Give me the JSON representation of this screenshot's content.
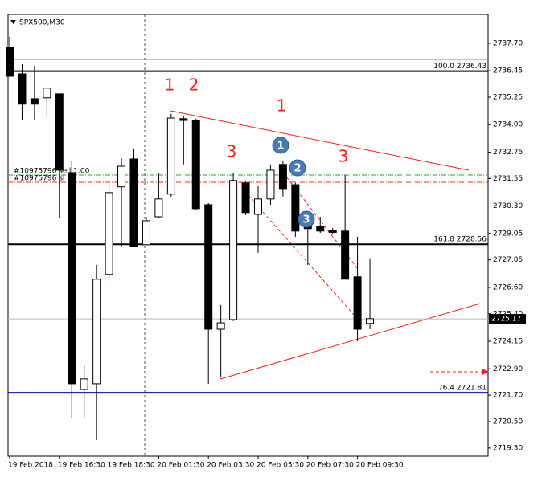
{
  "chart_data": {
    "type": "candlestick",
    "title": "SPX500,M30",
    "categories": [
      "19 Feb 2018",
      null,
      null,
      null,
      "19 Feb 16:30",
      null,
      null,
      null,
      "19 Feb 18:30",
      null,
      null,
      null,
      "20 Feb 01:30",
      null,
      null,
      null,
      "20 Feb 03:30",
      null,
      null,
      null,
      "20 Feb 05:30",
      null,
      null,
      null,
      "20 Feb 07:30",
      null,
      null,
      null,
      "20 Feb 09:30",
      null
    ],
    "open": [
      2737.5,
      2736.31,
      2735.18,
      2735.22,
      2735.4,
      2731.82,
      2721.96,
      2722.22,
      2727.19,
      2731.17,
      2732.44,
      2728.54,
      2729.81,
      2730.84,
      2734.27,
      2734.19,
      2730.36,
      2724.7,
      2725.14,
      2731.35,
      2729.92,
      2730.62,
      2732.19,
      2731.27,
      2729.45,
      2729.38,
      2729.2,
      2729.16,
      2727.08,
      2724.96
    ],
    "high": [
      2738.0,
      2736.75,
      2736.68,
      2735.66,
      2735.4,
      2732.37,
      2723.06,
      2727.62,
      2731.35,
      2732.48,
      2732.92,
      2729.81,
      2731.82,
      2734.49,
      2734.38,
      2734.27,
      2730.43,
      2725.8,
      2731.82,
      2731.46,
      2731.2,
      2732.19,
      2732.37,
      2731.35,
      2730.0,
      2729.81,
      2729.3,
      2731.71,
      2728.9,
      2727.92
    ],
    "low": [
      2736.2,
      2734.2,
      2734.2,
      2734.38,
      2729.74,
      2720.69,
      2720.69,
      2719.66,
      2726.9,
      2728.43,
      2728.46,
      2728.54,
      2729.74,
      2730.73,
      2732.19,
      2730.11,
      2722.22,
      2722.51,
      2725.07,
      2729.89,
      2728.17,
      2730.36,
      2730.73,
      2728.9,
      2727.62,
      2729.08,
      2729.0,
      2726.97,
      2724.15,
      2724.7
    ],
    "close": [
      2736.2,
      2734.93,
      2734.93,
      2735.66,
      2731.93,
      2722.22,
      2722.44,
      2726.97,
      2730.91,
      2732.11,
      2728.46,
      2729.63,
      2730.62,
      2734.3,
      2734.19,
      2730.18,
      2724.7,
      2724.99,
      2731.46,
      2730.0,
      2730.62,
      2731.93,
      2731.09,
      2729.16,
      2729.27,
      2729.16,
      2729.1,
      2726.97,
      2724.7,
      2725.18
    ],
    "up_color": "#ffffff",
    "down_color": "#000000",
    "ylim": [
      2719.15,
      2739.01
    ],
    "yticks": [
      {
        "value": 2719.3,
        "label": "2719.30"
      },
      {
        "value": 2720.5,
        "label": "2720.50"
      },
      {
        "value": 2721.7,
        "label": "2721.70"
      },
      {
        "value": 2722.9,
        "label": "2722.90"
      },
      {
        "value": 2724.15,
        "label": "2724.15"
      },
      {
        "value": 2725.4,
        "label": "2725.40"
      },
      {
        "value": 2726.6,
        "label": "2726.60"
      },
      {
        "value": 2727.85,
        "label": "2727.85"
      },
      {
        "value": 2729.05,
        "label": "2729.05"
      },
      {
        "value": 2730.3,
        "label": "2730.30"
      },
      {
        "value": 2731.55,
        "label": "2731.55"
      },
      {
        "value": 2732.75,
        "label": "2732.75"
      },
      {
        "value": 2734.0,
        "label": "2734.00"
      },
      {
        "value": 2735.25,
        "label": "2735.25"
      },
      {
        "value": 2736.45,
        "label": "2736.45"
      },
      {
        "value": 2737.7,
        "label": "2737.70"
      }
    ],
    "current_price": 2725.17,
    "levels": [
      {
        "label": "100.0",
        "value": 2736.43,
        "color": "#000000"
      },
      {
        "label": "161.8",
        "value": 2728.56,
        "color": "#000000"
      },
      {
        "label": "76.4",
        "value": 2721.81,
        "color": "#0000cc"
      }
    ],
    "red_line": 2736.97,
    "orders": [
      {
        "label": "#10975796 sell 1.00",
        "value": 2731.71,
        "color": "#22aa22"
      },
      {
        "label": "#10975796 sl",
        "value": 2731.38,
        "color": "#ff3300"
      }
    ],
    "red_marks": [
      "1",
      "2",
      "3",
      "1",
      "3"
    ],
    "blue_marks": [
      "1",
      "2",
      "3"
    ]
  }
}
